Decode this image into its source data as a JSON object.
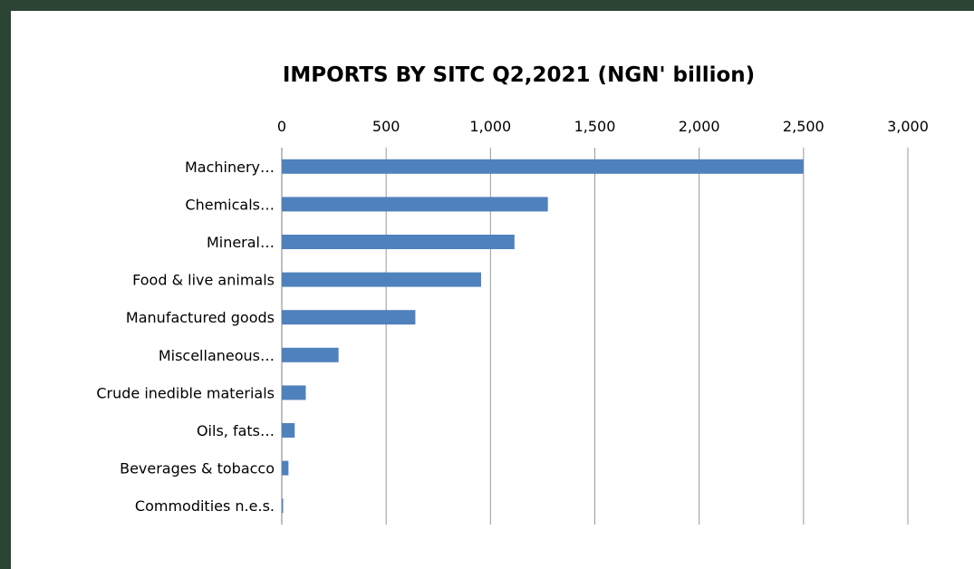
{
  "chart_data": {
    "type": "bar",
    "orientation": "horizontal",
    "title": "IMPORTS BY SITC Q2,2021 (NGN' billion)",
    "xlabel": "",
    "ylabel": "",
    "xlim": [
      0,
      3000
    ],
    "ticks": [
      "0",
      "500",
      "1,000",
      "1,500",
      "2,000",
      "2,500",
      "3,000"
    ],
    "tick_values": [
      0,
      500,
      1000,
      1500,
      2000,
      2500,
      3000
    ],
    "axis_position": "top",
    "grid": true,
    "bar_color": "#4f81bd",
    "categories": [
      "Machinery…",
      "Chemicals…",
      "Mineral…",
      "Food & live animals",
      "Manufactured goods",
      "Miscellaneous…",
      "Crude inedible materials",
      "Oils, fats…",
      "Beverages & tobacco",
      "Commodities n.e.s."
    ],
    "values": [
      2500,
      1275,
      1115,
      955,
      640,
      272,
      115,
      62,
      32,
      5
    ]
  }
}
